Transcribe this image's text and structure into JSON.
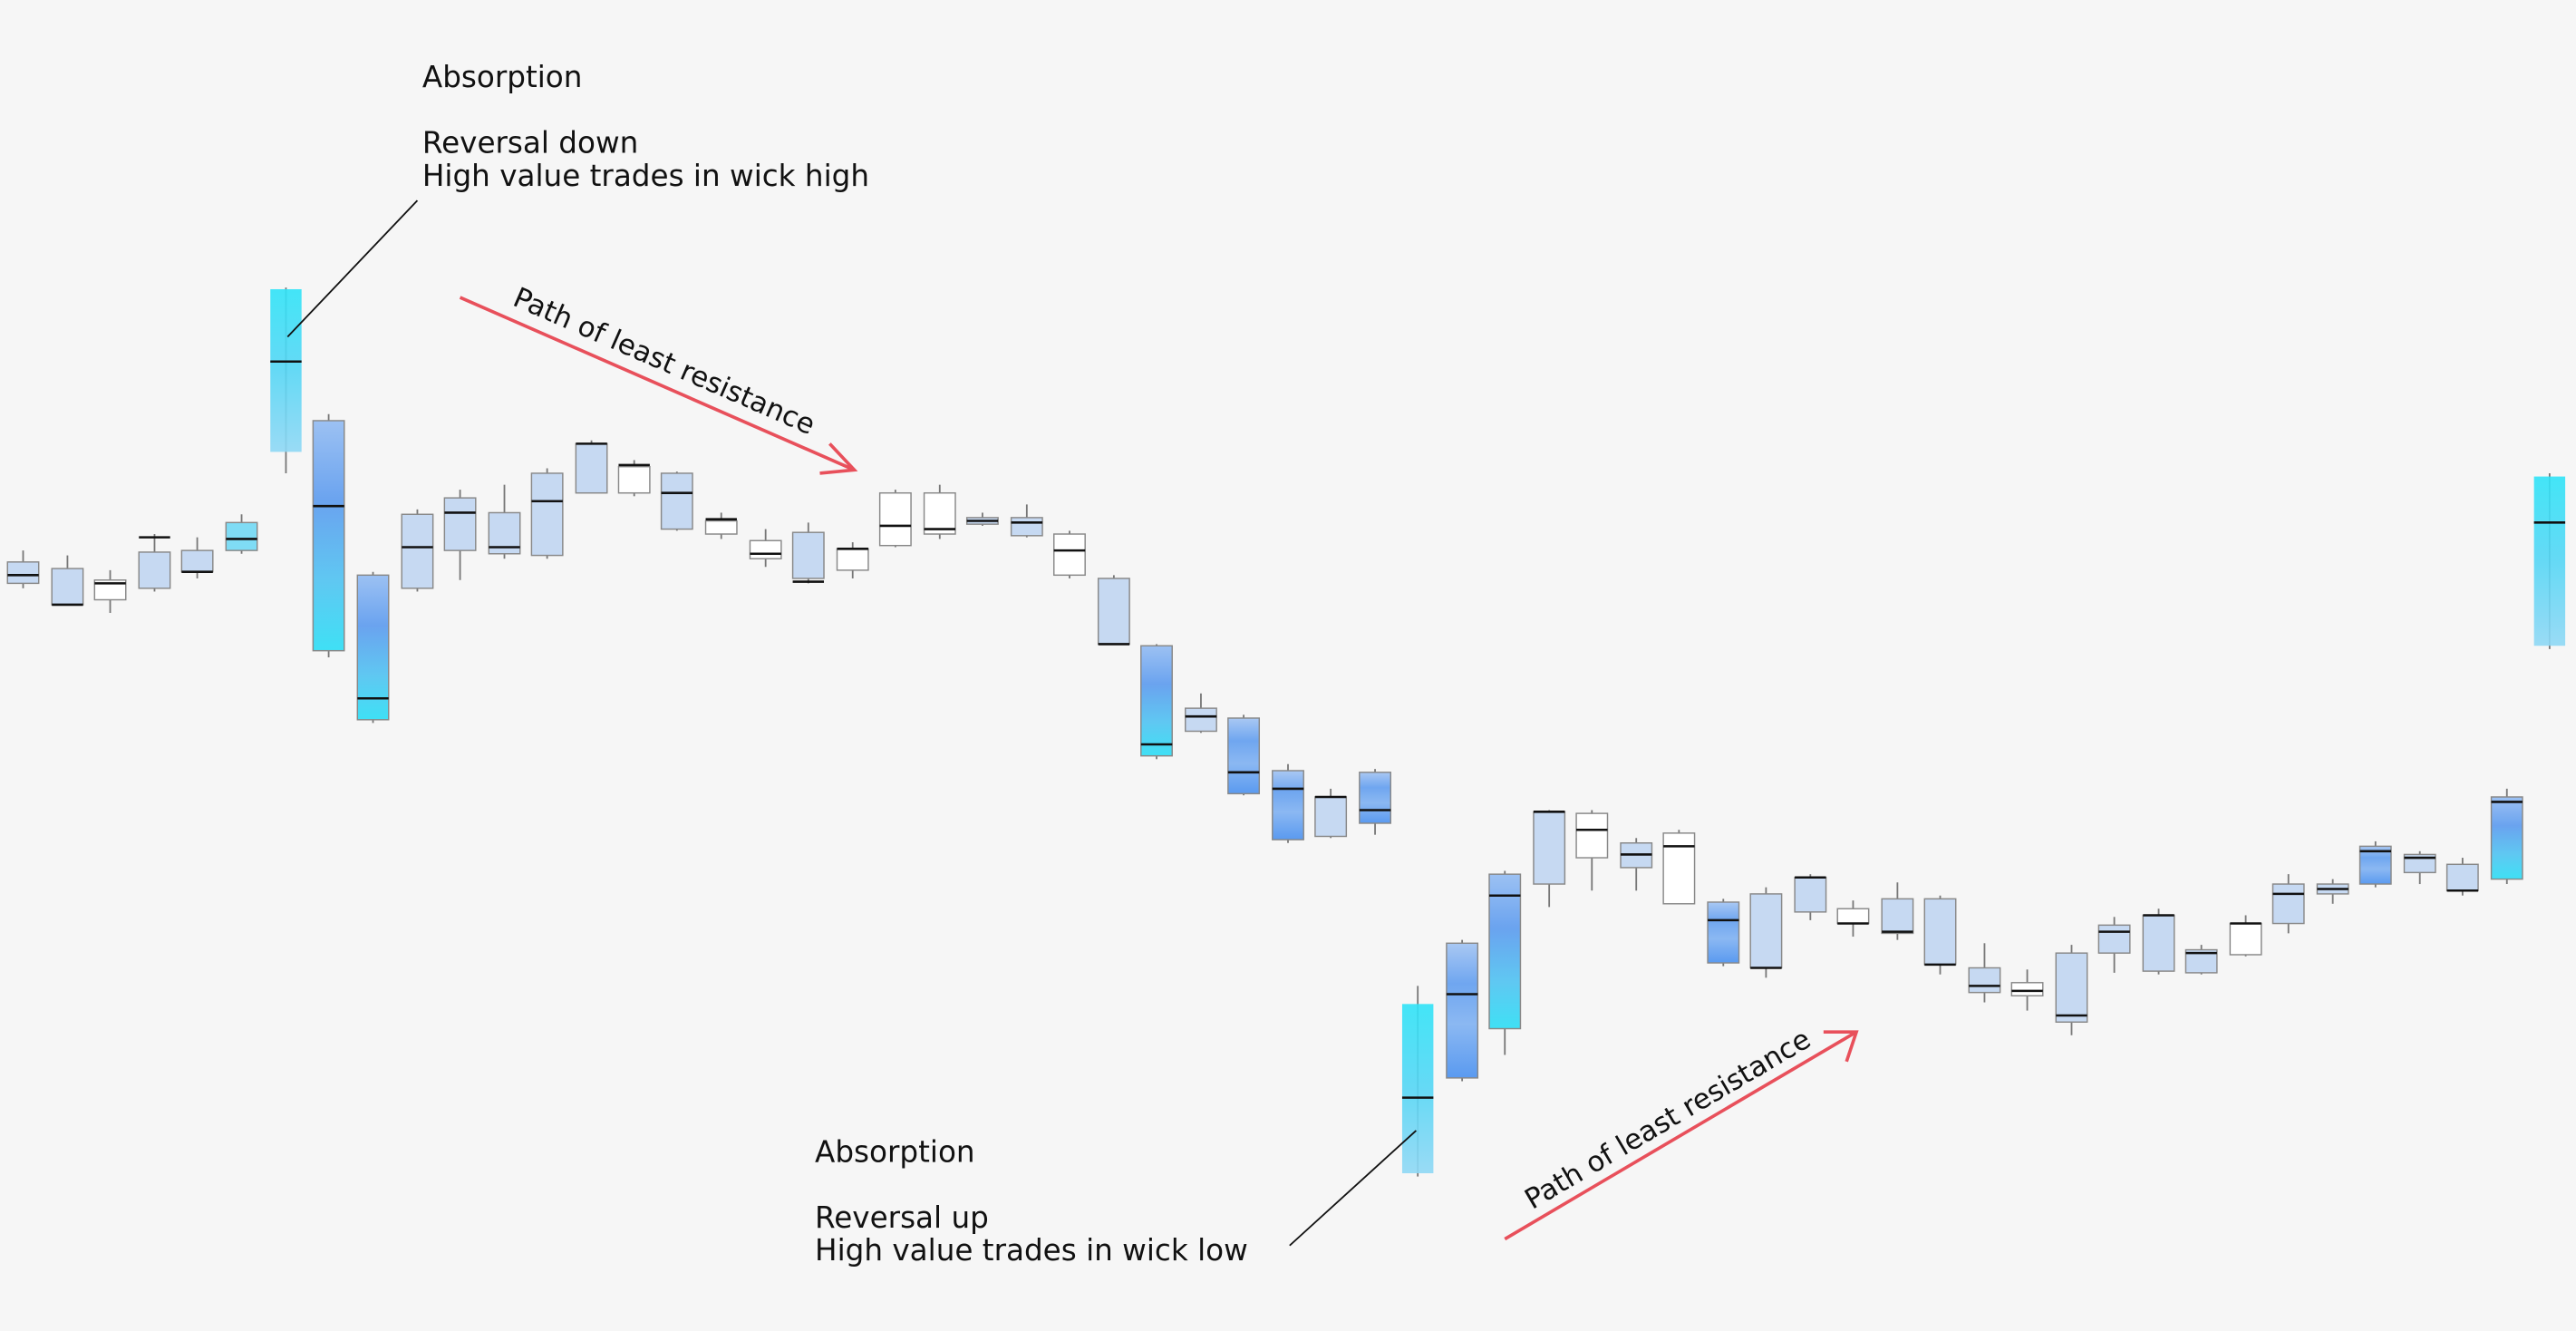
{
  "annotations": {
    "top": {
      "title": "Absorption",
      "lines": [
        "Reversal down",
        "High value trades in wick high"
      ]
    },
    "bottom": {
      "title": "Absorption",
      "lines": [
        "Reversal up",
        "High value trades in wick low"
      ]
    }
  },
  "arrows": [
    {
      "label": "Path of least resistance"
    },
    {
      "label": "Path of least resistance"
    }
  ]
}
